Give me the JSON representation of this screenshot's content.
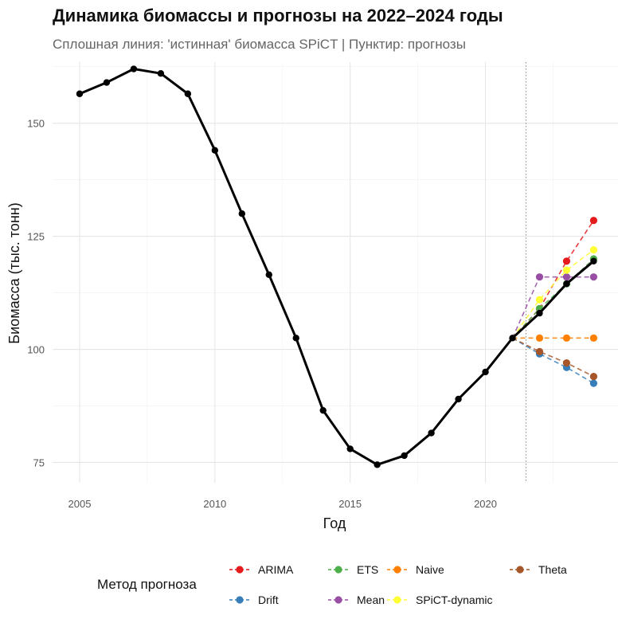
{
  "chart_data": {
    "type": "line",
    "title": "Динамика биомассы и прогнозы на 2022–2024 годы",
    "subtitle": "Сплошная линия: 'истинная' биомасса SPiCT | Пунктир: прогнозы",
    "xlabel": "Год",
    "ylabel": "Биомасса (тыс. тонн)",
    "xlim": [
      2004,
      2024.9
    ],
    "ylim": [
      70.5,
      163.5
    ],
    "x_ticks": [
      2005,
      2010,
      2015,
      2020
    ],
    "y_ticks": [
      75,
      100,
      125,
      150
    ],
    "grid": true,
    "forecast_start_marker": 2021.5,
    "actual": {
      "x": [
        2005,
        2006,
        2007,
        2008,
        2009,
        2010,
        2011,
        2012,
        2013,
        2014,
        2015,
        2016,
        2017,
        2018,
        2019,
        2020,
        2021,
        2022,
        2023,
        2024
      ],
      "y": [
        156.5,
        159.0,
        162.0,
        161.0,
        156.5,
        144.0,
        130.0,
        116.5,
        102.5,
        86.5,
        78.0,
        74.5,
        76.5,
        81.5,
        89.0,
        95.0,
        102.5,
        108.0,
        114.5,
        119.5
      ]
    },
    "legend": {
      "title": "Метод прогноза",
      "position": "bottom"
    },
    "series": [
      {
        "name": "ARIMA",
        "color": "#e41a1c",
        "x": [
          2021,
          2022,
          2023,
          2024
        ],
        "y": [
          102.5,
          109.0,
          119.5,
          128.5
        ]
      },
      {
        "name": "Drift",
        "color": "#377eb8",
        "x": [
          2021,
          2022,
          2023,
          2024
        ],
        "y": [
          102.5,
          99.0,
          96.0,
          92.5
        ]
      },
      {
        "name": "ETS",
        "color": "#4daf4a",
        "x": [
          2021,
          2022,
          2023,
          2024
        ],
        "y": [
          102.5,
          109.0,
          114.5,
          120.0
        ]
      },
      {
        "name": "Mean",
        "color": "#984ea3",
        "x": [
          2021,
          2022,
          2023,
          2024
        ],
        "y": [
          102.5,
          116.0,
          116.0,
          116.0
        ]
      },
      {
        "name": "Naive",
        "color": "#ff7f00",
        "x": [
          2021,
          2022,
          2023,
          2024
        ],
        "y": [
          102.5,
          102.5,
          102.5,
          102.5
        ]
      },
      {
        "name": "SPiCT-dynamic",
        "color": "#ffff33",
        "x": [
          2021,
          2022,
          2023,
          2024
        ],
        "y": [
          102.5,
          111.0,
          117.5,
          122.0
        ]
      },
      {
        "name": "Theta",
        "color": "#a65628",
        "x": [
          2021,
          2022,
          2023,
          2024
        ],
        "y": [
          102.5,
          99.5,
          97.0,
          94.0
        ]
      }
    ]
  }
}
